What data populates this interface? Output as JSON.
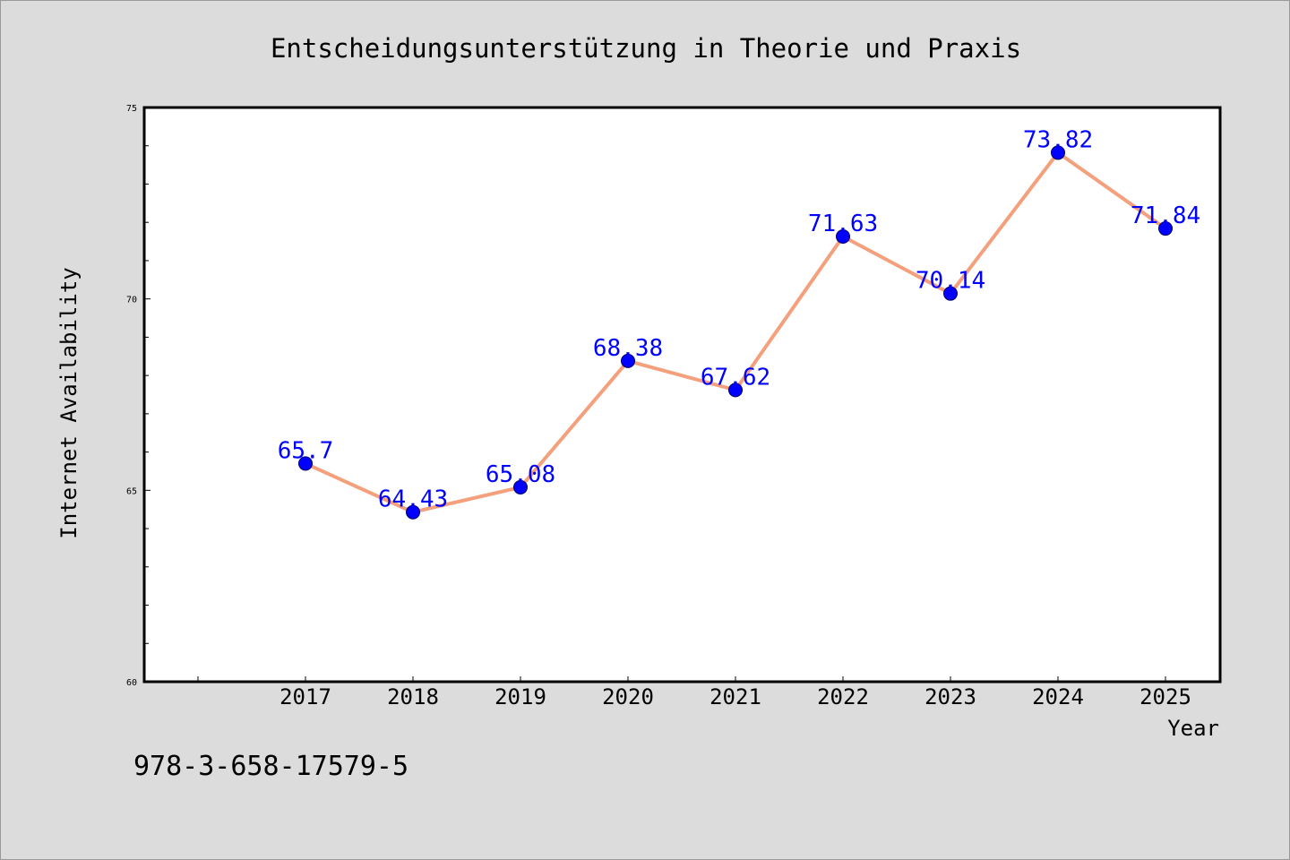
{
  "chart_data": {
    "type": "line",
    "title": "Entscheidungsunterstützung in Theorie und Praxis",
    "xlabel": "Year",
    "ylabel": "Internet Availability",
    "categories": [
      "2017",
      "2018",
      "2019",
      "2020",
      "2021",
      "2022",
      "2023",
      "2024",
      "2025"
    ],
    "series": [
      {
        "values": [
          65.7,
          64.43,
          65.08,
          68.38,
          67.62,
          71.63,
          70.14,
          73.82,
          71.84
        ],
        "labels": [
          "65.7",
          "64.43",
          "65.08",
          "68.38",
          "67.62",
          "71.63",
          "70.14",
          "73.82",
          "71.84"
        ],
        "line_color": "#f4a07c",
        "marker_color": "#0000ff"
      }
    ],
    "ylim": [
      60,
      75
    ],
    "yticks": [
      "60",
      "65",
      "70",
      "75"
    ],
    "grid": false,
    "legend": "none"
  },
  "annotation": {
    "isbn": "978-3-658-17579-5"
  },
  "colors": {
    "background": "#dcdcdc",
    "plot_background": "#ffffff",
    "line": "#f4a07c",
    "marker": "#0000ff",
    "data_label": "#0000ff"
  }
}
